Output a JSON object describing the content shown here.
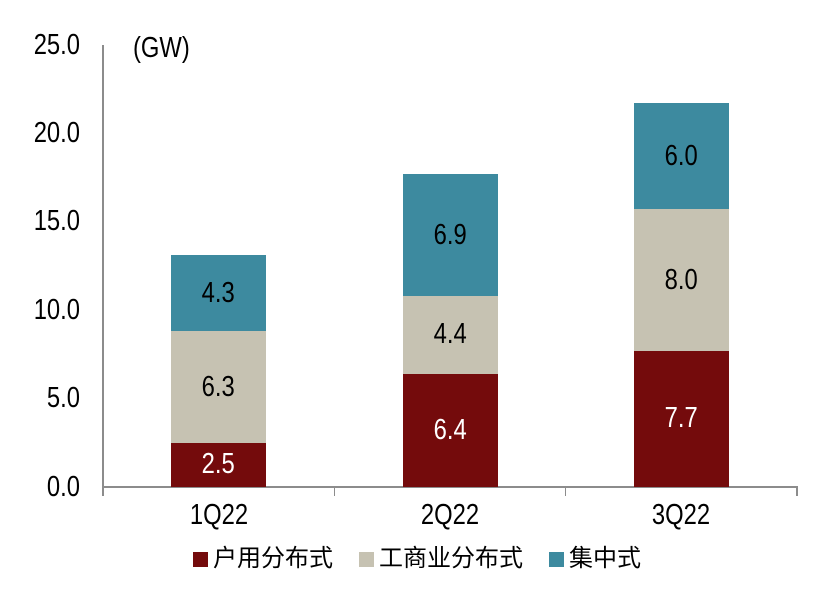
{
  "chart_data": {
    "type": "bar",
    "stacked": true,
    "title": "",
    "unit_label": "(GW)",
    "categories": [
      "1Q22",
      "2Q22",
      "3Q22"
    ],
    "series": [
      {
        "name": "户用分布式",
        "color": "#740B0C",
        "label_color": "#FFFFFF",
        "values": [
          2.5,
          6.4,
          7.7
        ]
      },
      {
        "name": "工商业分布式",
        "color": "#C6C2B2",
        "label_color": "#000000",
        "values": [
          6.3,
          4.4,
          8.0
        ]
      },
      {
        "name": "集中式",
        "color": "#3D8A9F",
        "label_color": "#000000",
        "values": [
          4.3,
          6.9,
          6.0
        ]
      }
    ],
    "totals": [
      13.1,
      17.7,
      21.7
    ],
    "ylim": [
      0,
      25
    ],
    "yticks": [
      0,
      5,
      10,
      15,
      20,
      25
    ],
    "ytick_labels": [
      "0.0",
      "5.0",
      "10.0",
      "15.0",
      "20.0",
      "25.0"
    ],
    "value_decimals": 1,
    "grid": false,
    "legend_position": "bottom",
    "axis_color": "#8C8C8C",
    "background_color": "#FFFFFF"
  }
}
